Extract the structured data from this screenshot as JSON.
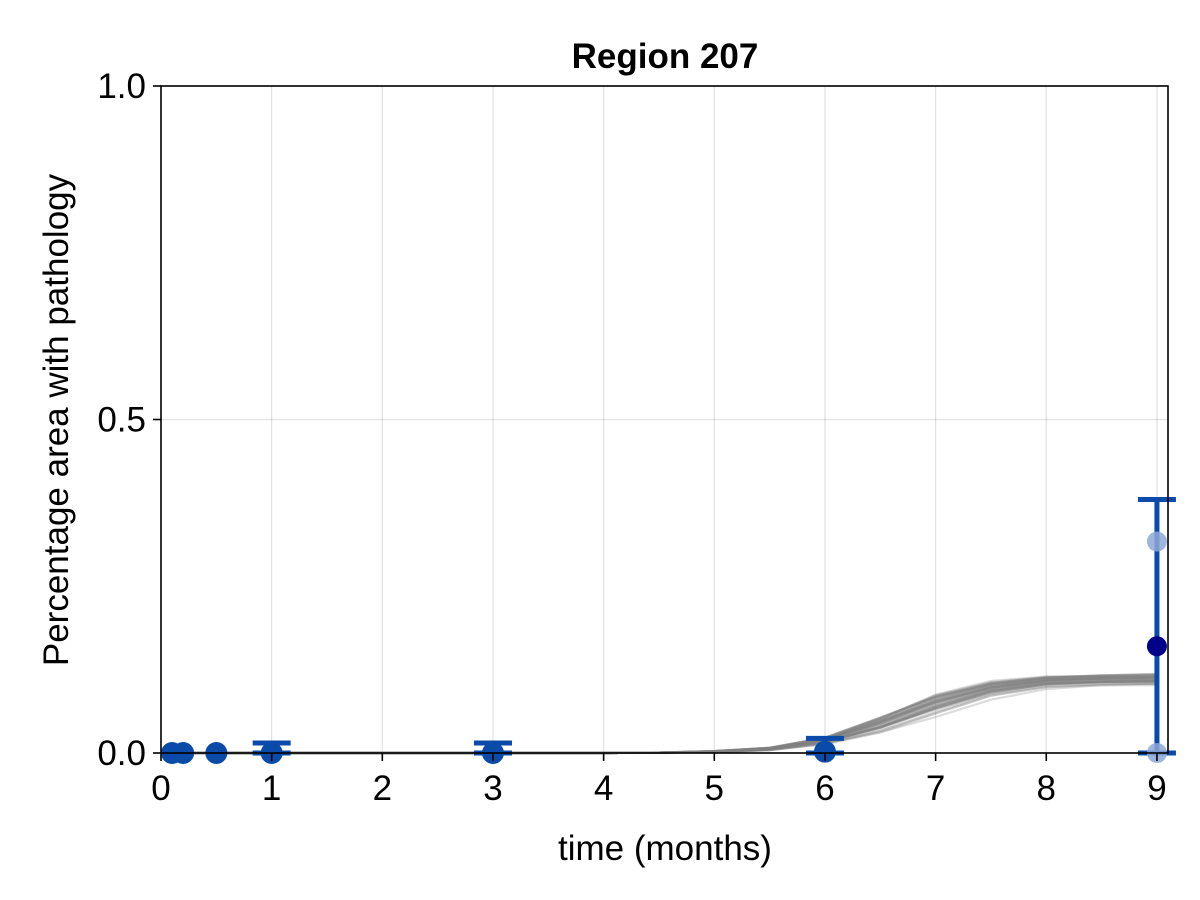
{
  "chart_data": {
    "type": "scatter",
    "title": "Region 207",
    "xlabel": "time (months)",
    "ylabel": "Percentage area with pathology",
    "xlim": [
      0,
      9.1
    ],
    "ylim": [
      0,
      1.0
    ],
    "x_ticks": [
      0,
      1,
      2,
      3,
      4,
      5,
      6,
      7,
      8,
      9
    ],
    "x_tick_labels": [
      "0",
      "1",
      "2",
      "3",
      "4",
      "5",
      "6",
      "7",
      "8",
      "9"
    ],
    "y_ticks": [
      0.0,
      0.5,
      1.0
    ],
    "y_tick_labels": [
      "0.0",
      "0.5",
      "1.0"
    ],
    "grid": true,
    "colors": {
      "curves": "#808080",
      "mean_points": "#0a4aa8",
      "errorbars": "#0a4aa8",
      "sample_points_light": "#8ea9d6",
      "sample_points_dark": "#00008b"
    },
    "series": [
      {
        "kind": "model_posterior_curves",
        "count": 40,
        "x": [
          0,
          1,
          2,
          3,
          4,
          4.5,
          5,
          5.5,
          6,
          6.5,
          7,
          7.5,
          8,
          8.5,
          9
        ],
        "y_median": [
          0,
          0,
          0,
          0,
          0,
          0.0005,
          0.002,
          0.006,
          0.018,
          0.042,
          0.072,
          0.095,
          0.106,
          0.109,
          0.11
        ],
        "y_spread": [
          0,
          0,
          0,
          0,
          0,
          0.0002,
          0.001,
          0.002,
          0.005,
          0.012,
          0.016,
          0.012,
          0.009,
          0.008,
          0.008
        ]
      },
      {
        "kind": "mean_with_errorbars",
        "x": [
          0.1,
          0.2,
          0.5,
          1,
          3,
          6,
          9
        ],
        "y": [
          0,
          0,
          0,
          0,
          0,
          0.002,
          0.16
        ],
        "err": [
          0,
          0,
          0,
          0.015,
          0.015,
          0.02,
          0.22
        ]
      },
      {
        "kind": "individual_samples",
        "x": [
          9,
          9,
          9
        ],
        "y": [
          0.317,
          0.16,
          0.0
        ],
        "shade": [
          "light",
          "dark",
          "light"
        ]
      }
    ]
  }
}
